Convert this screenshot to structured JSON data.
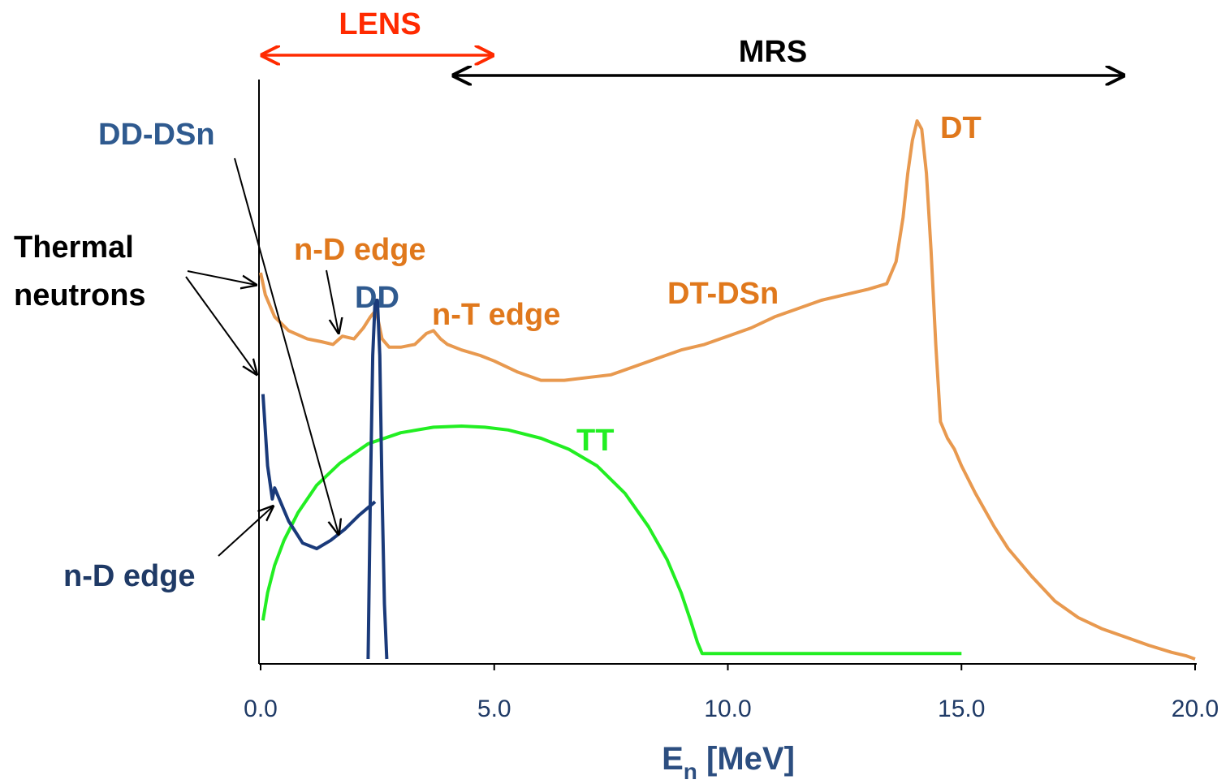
{
  "chart_data": {
    "type": "line",
    "title": "",
    "xlabel": "E",
    "xlabel_sub": "n",
    "xlabel_unit": " [MeV]",
    "ylabel": "",
    "xlim": [
      0,
      20
    ],
    "x_ticks": [
      0,
      5,
      10,
      15,
      20
    ],
    "x_tick_labels": [
      "0.0",
      "5.0",
      "10.0",
      "15.0",
      "20.0"
    ],
    "y_axis_visible": true,
    "y_ticks_shown": false,
    "grid": false,
    "colors": {
      "dt": "#e8994f",
      "dd": "#1a3a7a",
      "tt": "#22ee22",
      "lens": "#ff2a00",
      "mrs": "#000000",
      "orange_label": "#e0781c",
      "blue_label": "#2f5a8f",
      "navy_label": "#1f3a66"
    },
    "series": [
      {
        "key": "dt",
        "x": [
          0.0,
          0.1,
          0.3,
          0.6,
          1.0,
          1.3,
          1.55,
          1.75,
          2.0,
          2.2,
          2.35,
          2.45,
          2.5,
          2.6,
          2.75,
          3.0,
          3.3,
          3.55,
          3.7,
          3.85,
          4.0,
          4.3,
          4.7,
          5.0,
          5.5,
          6.0,
          6.5,
          7.0,
          7.5,
          8.0,
          8.5,
          9.0,
          9.5,
          10.0,
          10.5,
          11.0,
          11.5,
          12.0,
          12.5,
          13.0,
          13.4,
          13.6,
          13.75,
          13.85,
          13.95,
          14.05,
          14.15,
          14.25,
          14.35,
          14.45,
          14.55,
          14.7,
          14.85,
          15.0,
          15.3,
          15.7,
          16.0,
          16.5,
          17.0,
          17.5,
          18.0,
          18.5,
          19.0,
          19.5,
          19.8,
          20.0
        ],
        "y": [
          0.7,
          0.66,
          0.62,
          0.595,
          0.58,
          0.575,
          0.57,
          0.585,
          0.58,
          0.6,
          0.62,
          0.63,
          0.62,
          0.58,
          0.565,
          0.565,
          0.57,
          0.59,
          0.595,
          0.58,
          0.57,
          0.56,
          0.55,
          0.54,
          0.52,
          0.505,
          0.505,
          0.51,
          0.515,
          0.53,
          0.545,
          0.56,
          0.57,
          0.585,
          0.6,
          0.62,
          0.635,
          0.65,
          0.66,
          0.67,
          0.68,
          0.72,
          0.8,
          0.88,
          0.94,
          0.975,
          0.96,
          0.88,
          0.74,
          0.57,
          0.43,
          0.4,
          0.38,
          0.35,
          0.3,
          0.24,
          0.2,
          0.15,
          0.105,
          0.075,
          0.055,
          0.04,
          0.025,
          0.012,
          0.006,
          0.0
        ]
      },
      {
        "key": "dd_dsn",
        "x": [
          0.05,
          0.15,
          0.25,
          0.3,
          0.4,
          0.6,
          0.9,
          1.2,
          1.5,
          1.8,
          2.1,
          2.45
        ],
        "y": [
          0.48,
          0.35,
          0.29,
          0.31,
          0.29,
          0.25,
          0.21,
          0.2,
          0.215,
          0.235,
          0.26,
          0.285
        ]
      },
      {
        "key": "dd_peak",
        "x": [
          2.3,
          2.35,
          2.4,
          2.45,
          2.5,
          2.55,
          2.6,
          2.65,
          2.7
        ],
        "y": [
          0.0,
          0.3,
          0.55,
          0.65,
          0.65,
          0.55,
          0.3,
          0.1,
          0.0
        ]
      },
      {
        "key": "tt",
        "x": [
          0.05,
          0.15,
          0.3,
          0.5,
          0.8,
          1.2,
          1.7,
          2.3,
          3.0,
          3.7,
          4.3,
          4.8,
          5.3,
          6.0,
          6.6,
          7.2,
          7.8,
          8.3,
          8.7,
          9.0,
          9.2,
          9.35,
          9.45,
          9.5,
          9.6,
          12.0,
          15.0
        ],
        "y": [
          0.07,
          0.12,
          0.17,
          0.215,
          0.265,
          0.315,
          0.355,
          0.39,
          0.41,
          0.42,
          0.422,
          0.42,
          0.415,
          0.4,
          0.38,
          0.35,
          0.3,
          0.24,
          0.18,
          0.12,
          0.07,
          0.03,
          0.01,
          0.01,
          0.01,
          0.01,
          0.01
        ]
      }
    ],
    "labels": {
      "lens": "LENS",
      "mrs": "MRS",
      "dd_dsn": "DD-DSn",
      "dt": "DT",
      "thermal_line1": "Thermal",
      "thermal_line2": "neutrons",
      "nd_edge_top": "n-D edge",
      "dd": "DD",
      "nt_edge": "n-T edge",
      "dt_dsn": "DT-DSn",
      "tt": "TT",
      "nd_edge_bottom": "n-D edge"
    },
    "ranges": {
      "lens": [
        0.0,
        5.0
      ],
      "mrs": [
        4.1,
        18.5
      ]
    }
  }
}
